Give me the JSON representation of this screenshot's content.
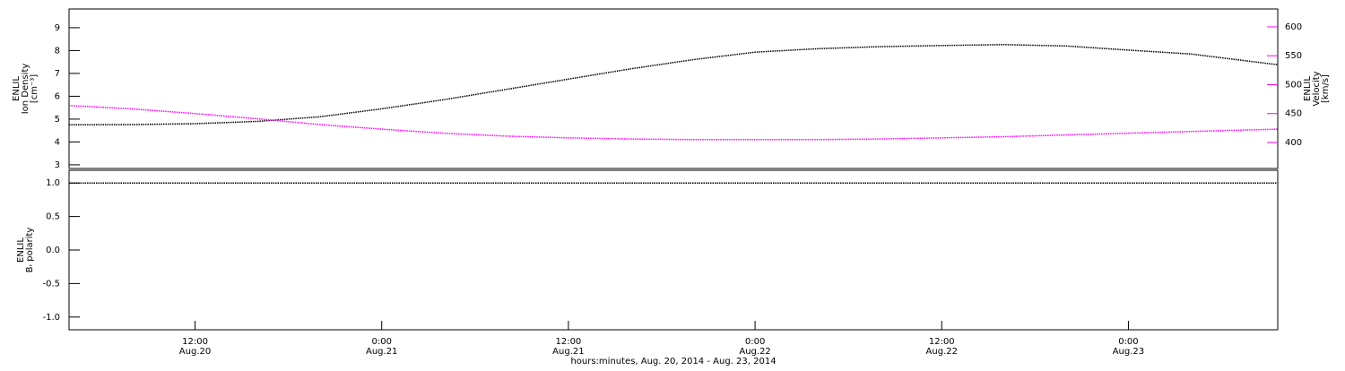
{
  "chart_data": [
    {
      "type": "line",
      "ylabel": [
        "ENLIL",
        "Ion Density",
        "[cm⁻³]"
      ],
      "y2label": [
        "ENLIL",
        "Velocity",
        "[km/s]"
      ],
      "x": [
        3.9,
        8,
        12,
        16,
        20,
        24,
        28,
        32,
        36,
        40,
        44,
        48,
        52,
        56,
        60,
        64,
        68,
        72,
        76,
        81.6
      ],
      "xlim": [
        3.9,
        81.6
      ],
      "series": [
        {
          "color": "#000000",
          "values": [
            4.75,
            4.76,
            4.8,
            4.9,
            5.1,
            5.45,
            5.85,
            6.3,
            6.75,
            7.2,
            7.6,
            7.93,
            8.08,
            8.17,
            8.22,
            8.26,
            8.2,
            8.02,
            7.85,
            7.38
          ]
        },
        {
          "color": "#ff00ff",
          "axis": "y2",
          "values": [
            464,
            458,
            450,
            441,
            431,
            423,
            416,
            411,
            408,
            406,
            405,
            405,
            405,
            406,
            408,
            410,
            413,
            416,
            419,
            423
          ]
        }
      ],
      "ylim": [
        2.84,
        9.82
      ],
      "yticks": [
        3,
        4,
        5,
        6,
        7,
        8,
        9
      ],
      "y2lim": [
        355,
        631
      ],
      "y2ticks": [
        400,
        450,
        500,
        550,
        600
      ],
      "y2color": "#ff00ff"
    },
    {
      "type": "line",
      "ylabel": [
        "ENLIL",
        "Bᵣ polarity"
      ],
      "x": [
        3.9,
        8,
        12,
        16,
        20,
        24,
        28,
        32,
        36,
        40,
        44,
        48,
        52,
        56,
        60,
        64,
        68,
        72,
        76,
        81.6
      ],
      "xlim": [
        3.9,
        81.6
      ],
      "series": [
        {
          "color": "#000000",
          "values": [
            1,
            1,
            1,
            1,
            1,
            1,
            1,
            1,
            1,
            1,
            1,
            1,
            1,
            1,
            1,
            1,
            1,
            1,
            1,
            1
          ]
        }
      ],
      "ylim": [
        -1.19,
        1.19
      ],
      "yticks": [
        {
          "value": -1,
          "label": "-1.0"
        },
        -0.5,
        {
          "value": 0,
          "label": "0.0"
        },
        0.5,
        {
          "value": 1,
          "label": "1.0"
        }
      ],
      "xticks": [
        {
          "value": 12,
          "label": "12:00"
        },
        {
          "value": 24,
          "label": "0:00"
        },
        {
          "value": 36,
          "label": "12:00"
        },
        {
          "value": 48,
          "label": "0:00"
        },
        {
          "value": 60,
          "label": "12:00"
        },
        {
          "value": 72,
          "label": "0:00"
        }
      ],
      "xtick_dates": [
        "Aug.20",
        "Aug.21",
        "Aug.21",
        "Aug.22",
        "Aug.22",
        "Aug.23"
      ],
      "xlabel": "hours:minutes, Aug. 20, 2014 - Aug. 23, 2014"
    }
  ]
}
